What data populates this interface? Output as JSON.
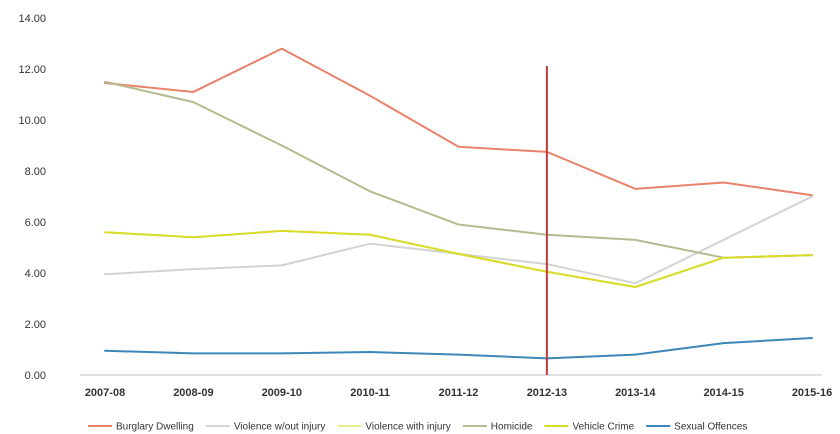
{
  "chart_data": {
    "type": "line",
    "title": "",
    "xlabel": "",
    "ylabel": "",
    "ylim": [
      0,
      14
    ],
    "yticks": [
      "0.00",
      "2.00",
      "4.00",
      "6.00",
      "8.00",
      "10.00",
      "12.00",
      "14.00"
    ],
    "categories": [
      "2007-08",
      "2008-09",
      "2009-10",
      "2010-11",
      "2011-12",
      "2012-13",
      "2013-14",
      "2014-15",
      "2015-16"
    ],
    "grid": false,
    "legend_position": "bottom",
    "marker_line": {
      "category": "2012-13",
      "color": "#c0393b"
    },
    "series": [
      {
        "name": "Burglary Dwelling",
        "color": "#e8826a",
        "values": [
          11.45,
          11.1,
          12.8,
          10.95,
          8.95,
          8.75,
          7.3,
          7.55,
          7.05
        ]
      },
      {
        "name": "Violence w/out injury",
        "color": "#d3d3d3",
        "values": [
          3.95,
          4.15,
          4.3,
          5.15,
          4.75,
          4.35,
          3.6,
          5.3,
          7.0
        ]
      },
      {
        "name": "Violence with injury",
        "color": "#eced8e",
        "values": [
          5.6,
          5.4,
          5.65,
          5.5,
          4.75,
          4.05,
          3.45,
          4.6,
          4.7
        ]
      },
      {
        "name": "Homicide",
        "color": "#b9b98f",
        "values": [
          11.5,
          10.7,
          9.0,
          7.2,
          5.9,
          5.5,
          5.3,
          4.6,
          4.7
        ]
      },
      {
        "name": "Vehicle Crime",
        "color": "#d9db2a",
        "values": [
          5.6,
          5.4,
          5.65,
          5.5,
          4.75,
          4.05,
          3.45,
          4.6,
          4.7
        ]
      },
      {
        "name": "Sexual Offences",
        "color": "#3d87b8",
        "values": [
          0.95,
          0.85,
          0.85,
          0.9,
          0.8,
          0.65,
          0.8,
          1.25,
          1.45
        ]
      }
    ]
  }
}
